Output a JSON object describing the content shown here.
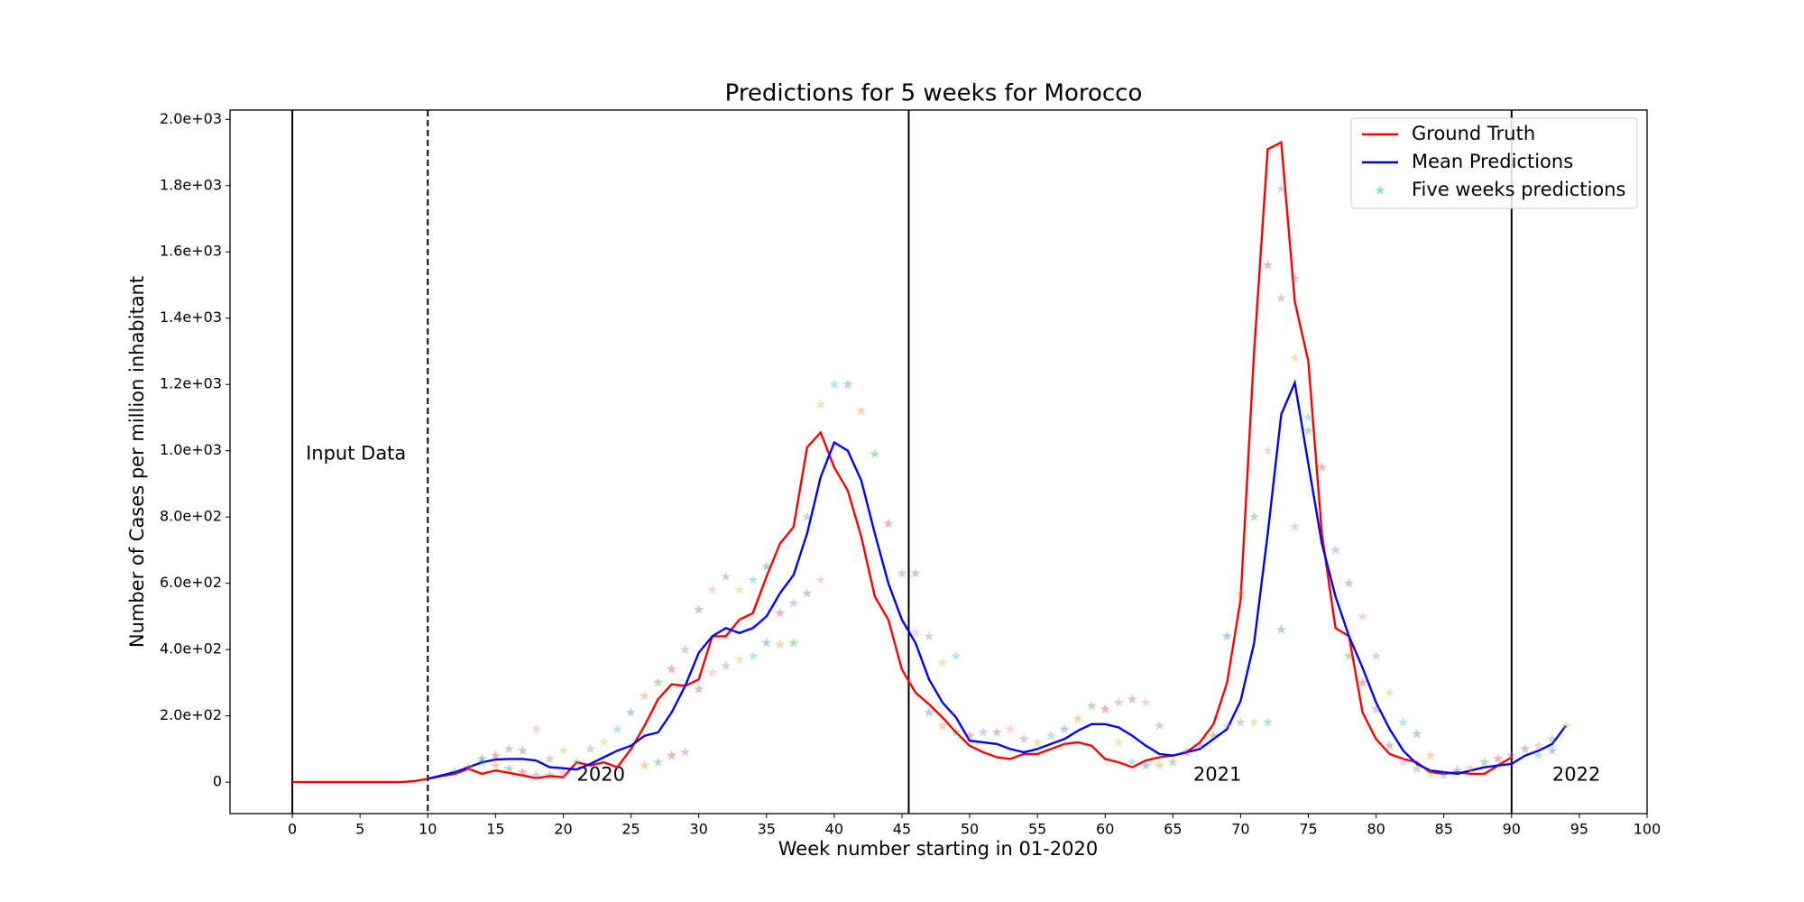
{
  "chart_data": {
    "type": "line",
    "title": "Predictions for 5 weeks for Morocco",
    "xlabel": "Week number starting in 01-2020",
    "ylabel": "Number of Cases per million inhabitant",
    "xlim": [
      -4.6,
      100
    ],
    "ylim": [
      -95,
      2028
    ],
    "xticks": [
      0,
      5,
      10,
      15,
      20,
      25,
      30,
      35,
      40,
      45,
      50,
      55,
      60,
      65,
      70,
      75,
      80,
      85,
      90,
      95,
      100
    ],
    "yticks": [
      {
        "value": 0,
        "label": "0"
      },
      {
        "value": 200,
        "label": "2.0e+02"
      },
      {
        "value": 400,
        "label": "4.0e+02"
      },
      {
        "value": 600,
        "label": "6.0e+02"
      },
      {
        "value": 800,
        "label": "8.0e+02"
      },
      {
        "value": 1000,
        "label": "1.0e+03"
      },
      {
        "value": 1200,
        "label": "1.2e+03"
      },
      {
        "value": 1400,
        "label": "1.4e+03"
      },
      {
        "value": 1600,
        "label": "1.6e+03"
      },
      {
        "value": 1800,
        "label": "1.8e+03"
      },
      {
        "value": 2000,
        "label": "2.0e+03"
      }
    ],
    "legend": "upper right",
    "series": [
      {
        "name": "Ground Truth",
        "type": "line",
        "color": "#ff0000",
        "x": [
          0,
          1,
          2,
          3,
          4,
          5,
          6,
          7,
          8,
          9,
          10,
          11,
          12,
          13,
          14,
          15,
          16,
          17,
          18,
          19,
          20,
          21,
          22,
          23,
          24,
          25,
          26,
          27,
          28,
          29,
          30,
          31,
          32,
          33,
          34,
          35,
          36,
          37,
          38,
          39,
          40,
          41,
          42,
          43,
          44,
          45,
          46,
          47,
          48,
          49,
          50,
          51,
          52,
          53,
          54,
          55,
          56,
          57,
          58,
          59,
          60,
          61,
          62,
          63,
          64,
          65,
          66,
          67,
          68,
          69,
          70,
          71,
          72,
          73,
          74,
          75,
          76,
          77,
          78,
          79,
          80,
          81,
          82,
          83,
          84,
          85,
          86,
          87,
          88,
          89,
          90
        ],
        "values": [
          0,
          0,
          0,
          0,
          0,
          0,
          0,
          0,
          0,
          3,
          10,
          18,
          25,
          40,
          25,
          35,
          28,
          20,
          12,
          18,
          15,
          60,
          50,
          60,
          45,
          100,
          170,
          250,
          295,
          290,
          310,
          440,
          440,
          490,
          510,
          620,
          720,
          770,
          1010,
          1055,
          950,
          880,
          740,
          560,
          490,
          340,
          270,
          235,
          195,
          150,
          110,
          90,
          75,
          70,
          85,
          85,
          100,
          115,
          120,
          110,
          70,
          60,
          45,
          65,
          75,
          80,
          90,
          120,
          175,
          300,
          550,
          1300,
          1910,
          1930,
          1450,
          1270,
          750,
          465,
          440,
          210,
          130,
          85,
          70,
          60,
          30,
          25,
          30,
          25,
          25,
          50,
          75
        ]
      },
      {
        "name": "Mean Predictions",
        "type": "line",
        "color": "#0000ff",
        "x": [
          10,
          11,
          12,
          13,
          14,
          15,
          16,
          17,
          18,
          19,
          20,
          21,
          22,
          23,
          24,
          25,
          26,
          27,
          28,
          29,
          30,
          31,
          32,
          33,
          34,
          35,
          36,
          37,
          38,
          39,
          40,
          41,
          42,
          43,
          44,
          45,
          46,
          47,
          48,
          49,
          50,
          51,
          52,
          53,
          54,
          55,
          56,
          57,
          58,
          59,
          60,
          61,
          62,
          63,
          64,
          65,
          66,
          67,
          68,
          69,
          70,
          71,
          72,
          73,
          74,
          75,
          76,
          77,
          78,
          79,
          80,
          81,
          82,
          83,
          84,
          85,
          86,
          87,
          88,
          89,
          90,
          91,
          92,
          93,
          94
        ],
        "values": [
          10,
          20,
          30,
          45,
          60,
          68,
          70,
          70,
          65,
          45,
          42,
          38,
          55,
          75,
          95,
          110,
          140,
          150,
          210,
          290,
          390,
          440,
          465,
          450,
          465,
          500,
          570,
          625,
          750,
          920,
          1025,
          1000,
          910,
          750,
          600,
          490,
          420,
          310,
          240,
          195,
          125,
          120,
          115,
          100,
          90,
          100,
          115,
          130,
          155,
          175,
          175,
          165,
          140,
          110,
          85,
          80,
          90,
          100,
          130,
          160,
          245,
          420,
          750,
          1110,
          1205,
          960,
          720,
          560,
          440,
          345,
          240,
          160,
          95,
          55,
          35,
          30,
          25,
          35,
          45,
          50,
          55,
          80,
          95,
          115,
          170
        ]
      },
      {
        "name": "Five weeks predictions",
        "type": "scatter",
        "color": "#17becf",
        "colors": [
          "#1f77b4",
          "#ff7f0e",
          "#2ca02c",
          "#d62728",
          "#9467bd",
          "#8c564b",
          "#e377c2",
          "#7f7f7f",
          "#bcbd22",
          "#17becf"
        ],
        "x": [
          12,
          13,
          14,
          15,
          16,
          17,
          18,
          19,
          20,
          21,
          14,
          15,
          16,
          17,
          18,
          19,
          20,
          22,
          23,
          24,
          25,
          26,
          27,
          28,
          29,
          30,
          31,
          32,
          33,
          34,
          35,
          26,
          27,
          28,
          29,
          30,
          31,
          32,
          33,
          34,
          35,
          36,
          37,
          36,
          37,
          38,
          39,
          38,
          39,
          40,
          41,
          42,
          43,
          44,
          45,
          46,
          46,
          47,
          48,
          49,
          47,
          48,
          49,
          50,
          51,
          52,
          53,
          54,
          55,
          56,
          57,
          58,
          59,
          60,
          61,
          62,
          63,
          64,
          61,
          62,
          63,
          64,
          65,
          66,
          67,
          68,
          69,
          70,
          71,
          72,
          69,
          70,
          71,
          72,
          73,
          74,
          72,
          73,
          74,
          75,
          73,
          74,
          75,
          76,
          77,
          78,
          79,
          80,
          81,
          82,
          83,
          84,
          78,
          79,
          80,
          81,
          82,
          83,
          84,
          85,
          86,
          87,
          88,
          89,
          90,
          91,
          92,
          93,
          94,
          92,
          93
        ],
        "values": [
          30,
          45,
          60,
          80,
          100,
          95,
          160,
          70,
          95,
          60,
          70,
          50,
          40,
          30,
          20,
          20,
          25,
          100,
          120,
          160,
          210,
          260,
          300,
          340,
          400,
          520,
          580,
          620,
          580,
          610,
          650,
          50,
          60,
          80,
          90,
          280,
          330,
          350,
          370,
          380,
          420,
          415,
          420,
          510,
          540,
          570,
          610,
          800,
          1140,
          1200,
          1200,
          1120,
          990,
          780,
          630,
          630,
          450,
          440,
          360,
          380,
          210,
          170,
          150,
          140,
          150,
          150,
          160,
          130,
          120,
          140,
          160,
          190,
          230,
          220,
          240,
          250,
          240,
          170,
          120,
          60,
          50,
          50,
          60,
          90,
          110,
          140,
          170,
          180,
          180,
          180,
          440,
          570,
          800,
          1560,
          1790,
          1520,
          1000,
          1460,
          1280,
          1100,
          460,
          770,
          1060,
          950,
          700,
          600,
          500,
          380,
          270,
          180,
          145,
          80,
          380,
          300,
          220,
          110,
          60,
          40,
          25,
          20,
          35,
          40,
          60,
          70,
          80,
          100,
          110,
          130,
          170,
          80,
          95
        ]
      }
    ],
    "vlines": [
      {
        "x": 0,
        "style": "solid"
      },
      {
        "x": 10,
        "style": "dashed"
      },
      {
        "x": 45.5,
        "style": "solid"
      },
      {
        "x": 90,
        "style": "solid"
      }
    ],
    "annotations": [
      {
        "text": "Input Data",
        "x": 1,
        "y": 990
      },
      {
        "text": "2020",
        "x": 21,
        "y": 20
      },
      {
        "text": "2021",
        "x": 66.5,
        "y": 20
      },
      {
        "text": "2022",
        "x": 93,
        "y": 20
      }
    ]
  }
}
